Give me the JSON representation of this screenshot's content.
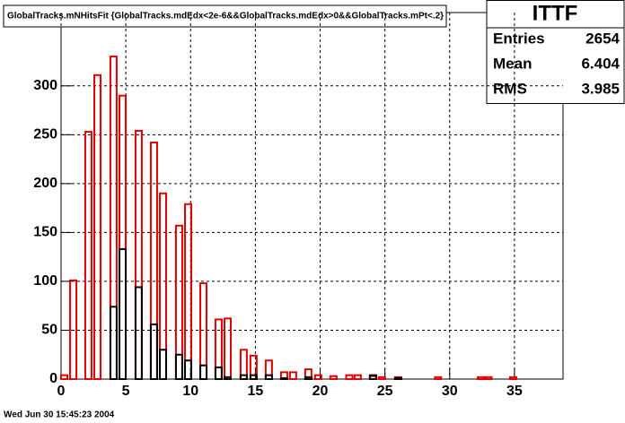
{
  "chart_data": {
    "type": "bar",
    "title": "GlobalTracks.mNHitsFit {GlobalTracks.mdEdx<2e-6&&GlobalTracks.mdEdx>0&&GlobalTracks.mPt<.2}",
    "x": [
      0.24,
      0.94,
      2.11,
      2.81,
      4.05,
      4.75,
      5.99,
      7.17,
      7.87,
      9.11,
      9.81,
      10.99,
      12.16,
      12.86,
      14.1,
      14.86,
      16.04,
      17.22,
      17.91,
      19.09,
      19.85,
      21.03,
      22.25,
      22.9,
      24.08,
      24.77,
      26.02,
      29.1,
      32.4,
      33.0,
      34.9
    ],
    "series": [
      {
        "color": "#e00000",
        "values": [
          4,
          101,
          253,
          311,
          330,
          290,
          254,
          242,
          190,
          157,
          179,
          98,
          61,
          62,
          30,
          24,
          19,
          7,
          7,
          10,
          4,
          3,
          4,
          4,
          3,
          2,
          2,
          2,
          2,
          2,
          2
        ]
      },
      {
        "color": "#000000",
        "values": [
          0,
          0,
          0,
          0,
          74,
          133,
          94,
          56,
          30,
          25,
          19,
          14,
          12,
          2,
          4,
          4,
          4,
          1,
          0,
          2,
          0,
          0,
          0,
          0,
          4,
          0,
          1,
          0,
          0,
          0,
          0
        ]
      }
    ],
    "xlim": [
      0,
      38.75
    ],
    "ylim": [
      0,
      375
    ],
    "xticks": [
      0,
      5,
      10,
      15,
      20,
      25,
      30,
      35
    ],
    "yticks": [
      0,
      50,
      100,
      150,
      200,
      250,
      300
    ],
    "grid": true,
    "stats": {
      "title": "ITTF",
      "rows": [
        {
          "name": "Entries",
          "value": 2654
        },
        {
          "name": "Mean",
          "value": 6.404
        },
        {
          "name": "RMS",
          "value": 3.985
        }
      ]
    },
    "footer": "Wed Jun 30 15:45:23 2004"
  }
}
